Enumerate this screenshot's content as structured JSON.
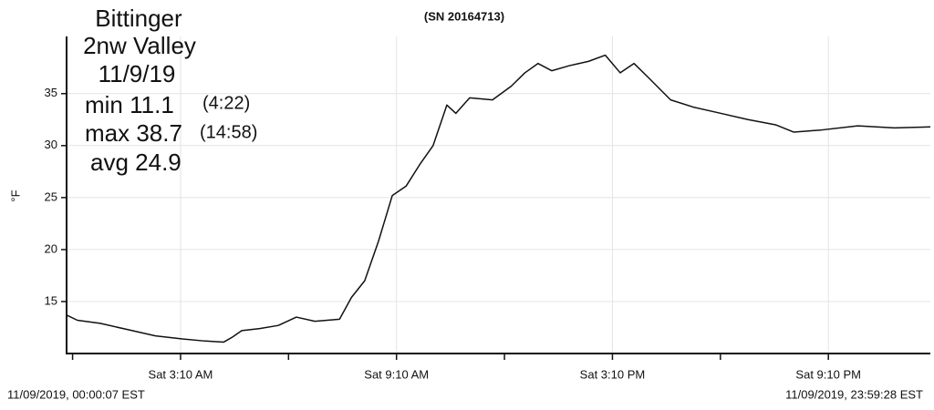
{
  "chart_data": {
    "type": "line",
    "title": "(SN 20164713)",
    "y_label": "°F",
    "annotations": [
      "Bittinger",
      "2nw Valley",
      "11/9/19",
      "min 11.1",
      "(4:22)",
      "max 38.7",
      "(14:58)",
      "avg 24.9"
    ],
    "start_label": "11/09/2019, 00:00:07 EST",
    "end_label": "11/09/2019, 23:59:28 EST",
    "x": [
      0,
      18,
      56,
      102,
      148,
      193,
      231,
      262,
      277,
      292,
      322,
      353,
      383,
      414,
      455,
      475,
      497,
      520,
      543,
      566,
      589,
      611,
      634,
      649,
      672,
      710,
      741,
      764,
      786,
      809,
      839,
      870,
      898,
      923,
      946,
      969,
      1007,
      1045,
      1091,
      1136,
      1182,
      1212,
      1258,
      1319,
      1380,
      1440
    ],
    "series": [
      {
        "name": "Temperature",
        "color": "#111111",
        "values": [
          13.7,
          13.2,
          12.9,
          12.3,
          11.7,
          11.4,
          11.2,
          11.1,
          11.6,
          12.2,
          12.4,
          12.7,
          13.5,
          13.1,
          13.3,
          15.4,
          17.0,
          20.8,
          25.2,
          26.1,
          28.2,
          30.0,
          33.9,
          33.1,
          34.6,
          34.4,
          35.7,
          37.0,
          37.9,
          37.2,
          37.7,
          38.1,
          38.7,
          37.0,
          37.9,
          36.6,
          34.4,
          33.7,
          33.1,
          32.5,
          32.0,
          31.3,
          31.5,
          31.9,
          31.7,
          31.8
        ]
      }
    ],
    "xlim": [
      0,
      1440
    ],
    "ylim": [
      10,
      40.5
    ],
    "xticks": [
      {
        "value": 190,
        "label": "Sat 3:10 AM"
      },
      {
        "value": 550,
        "label": "Sat 9:10 AM"
      },
      {
        "value": 910,
        "label": "Sat 3:10 PM"
      },
      {
        "value": 1270,
        "label": "Sat 9:10 PM"
      }
    ],
    "xminorticks": [
      10,
      370,
      730,
      1090
    ],
    "yticks": [
      15,
      20,
      25,
      30,
      35
    ],
    "grid": true
  }
}
